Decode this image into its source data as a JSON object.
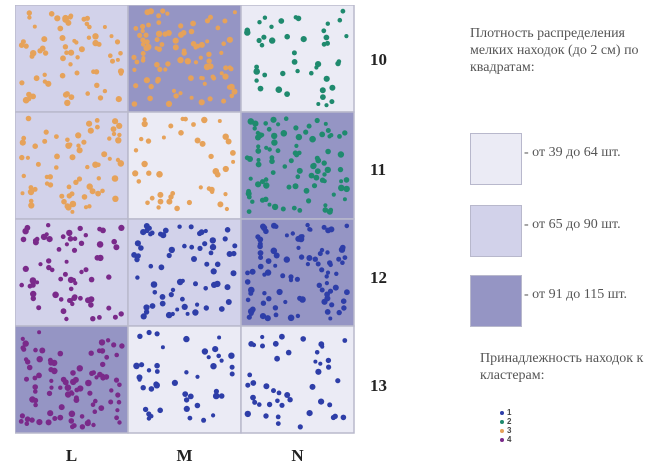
{
  "columns": [
    "L",
    "M",
    "N"
  ],
  "rows": [
    "10",
    "11",
    "12",
    "13"
  ],
  "legend": {
    "title": "Плотность распределения мелких находок (до 2 см) по квадратам:",
    "density_levels": [
      {
        "label": "- от 39 до 64 шт.",
        "color": "#ebebf5"
      },
      {
        "label": "- от 65 до 90 шт.",
        "color": "#d2d2ea"
      },
      {
        "label": "- от 91 до 115 шт.",
        "color": "#9595c4"
      }
    ]
  },
  "cluster_legend": {
    "title": "Принадлежность находок к кластерам:",
    "clusters": [
      {
        "label": "1",
        "color": "#2e3ea8"
      },
      {
        "label": "2",
        "color": "#1f8a6e"
      },
      {
        "label": "3",
        "color": "#e6a25a"
      },
      {
        "label": "4",
        "color": "#7a2a8a"
      }
    ]
  },
  "squares": [
    {
      "row": "10",
      "col": "L",
      "density": 1,
      "cluster": 3
    },
    {
      "row": "10",
      "col": "M",
      "density": 2,
      "cluster": 3
    },
    {
      "row": "10",
      "col": "N",
      "density": 0,
      "cluster": 2
    },
    {
      "row": "11",
      "col": "L",
      "density": 1,
      "cluster": 3
    },
    {
      "row": "11",
      "col": "M",
      "density": 0,
      "cluster": 3
    },
    {
      "row": "11",
      "col": "N",
      "density": 2,
      "cluster": 2
    },
    {
      "row": "12",
      "col": "L",
      "density": 1,
      "cluster": 4
    },
    {
      "row": "12",
      "col": "M",
      "density": 1,
      "cluster": 1
    },
    {
      "row": "12",
      "col": "N",
      "density": 2,
      "cluster": 1
    },
    {
      "row": "13",
      "col": "L",
      "density": 2,
      "cluster": 4
    },
    {
      "row": "13",
      "col": "M",
      "density": 0,
      "cluster": 1
    },
    {
      "row": "13",
      "col": "N",
      "density": 0,
      "cluster": 1
    }
  ]
}
